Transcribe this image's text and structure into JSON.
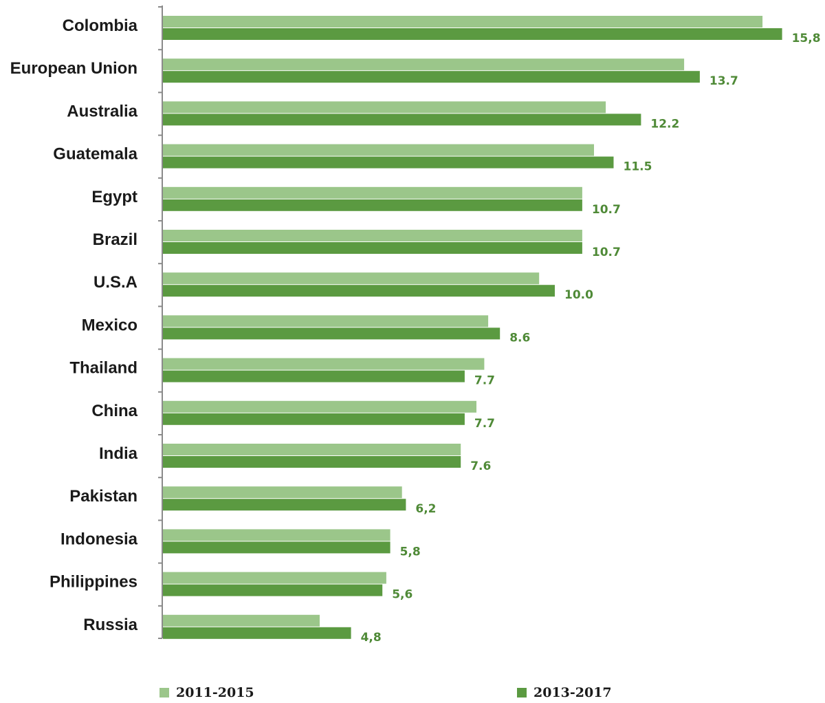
{
  "chart_data": {
    "type": "bar",
    "orientation": "horizontal",
    "categories": [
      "Colombia",
      "European Union",
      "Australia",
      "Guatemala",
      "Egypt",
      "Brazil",
      "U.S.A",
      "Mexico",
      "Thailand",
      "China",
      "India",
      "Pakistan",
      "Indonesia",
      "Philippines",
      "Russia"
    ],
    "series": [
      {
        "name": "2011-2015",
        "color": "#9bc68a",
        "values": [
          15.3,
          13.3,
          11.3,
          11.0,
          10.7,
          10.7,
          9.6,
          8.3,
          8.2,
          8.0,
          7.6,
          6.1,
          5.8,
          5.7,
          4.0
        ]
      },
      {
        "name": "2013-2017",
        "color": "#5b9a41",
        "values": [
          15.8,
          13.7,
          12.2,
          11.5,
          10.7,
          10.7,
          10.0,
          8.6,
          7.7,
          7.7,
          7.6,
          6.2,
          5.8,
          5.6,
          4.8
        ]
      }
    ],
    "data_labels": [
      "15,8",
      "13.7",
      "12.2",
      "11.5",
      "10.7",
      "10.7",
      "10.0",
      "8.6",
      "7.7",
      "7.7",
      "7.6",
      "6,2",
      "5,8",
      "5,6",
      "4,8"
    ],
    "label_color": "#4f8a37",
    "xlim": [
      0,
      16
    ],
    "x_axis_visible": false,
    "grid": false,
    "legend_position": "bottom",
    "title": "",
    "xlabel": "",
    "ylabel": ""
  }
}
